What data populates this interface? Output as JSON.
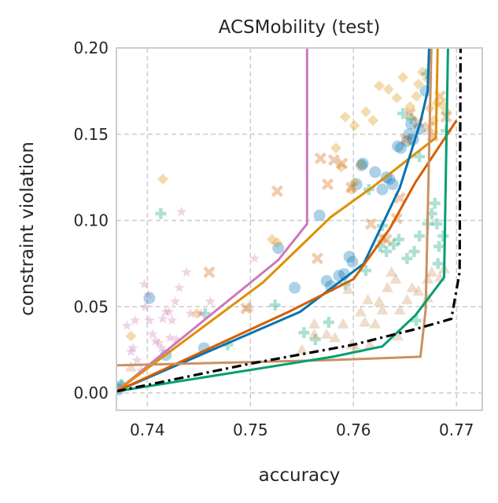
{
  "chart_data": {
    "type": "scatter",
    "title": "ACSMobility (test)",
    "xlabel": "accuracy",
    "ylabel": "constraint violation",
    "xlim": [
      0.737,
      0.7725
    ],
    "ylim": [
      -0.01,
      0.2
    ],
    "xticks": [
      "0.74",
      "0.75",
      "0.76",
      "0.77"
    ],
    "xtick_values": [
      0.74,
      0.75,
      0.76,
      0.77
    ],
    "yticks": [
      "0.00",
      "0.05",
      "0.10",
      "0.15",
      "0.20"
    ],
    "ytick_values": [
      0.0,
      0.05,
      0.1,
      0.15,
      0.2
    ],
    "grid": true,
    "legend": "none",
    "series": [
      {
        "color": "#0173b2",
        "marker": "circle",
        "points": [
          [
            0.7372,
            0.002
          ],
          [
            0.7402,
            0.055
          ],
          [
            0.7418,
            0.022
          ],
          [
            0.7455,
            0.026
          ],
          [
            0.7527,
            0.084
          ],
          [
            0.7543,
            0.061
          ],
          [
            0.7567,
            0.103
          ],
          [
            0.7574,
            0.065
          ],
          [
            0.7578,
            0.062
          ],
          [
            0.7586,
            0.068
          ],
          [
            0.7591,
            0.069
          ],
          [
            0.7596,
            0.079
          ],
          [
            0.7599,
            0.076
          ],
          [
            0.7603,
            0.121
          ],
          [
            0.7608,
            0.132
          ],
          [
            0.7609,
            0.133
          ],
          [
            0.7621,
            0.128
          ],
          [
            0.7628,
            0.118
          ],
          [
            0.7632,
            0.125
          ],
          [
            0.7635,
            0.124
          ],
          [
            0.7638,
            0.121
          ],
          [
            0.7643,
            0.143
          ],
          [
            0.7646,
            0.142
          ],
          [
            0.7652,
            0.146
          ],
          [
            0.7654,
            0.15
          ],
          [
            0.7656,
            0.156
          ],
          [
            0.7658,
            0.147
          ],
          [
            0.7664,
            0.153
          ],
          [
            0.767,
            0.175
          ],
          [
            0.7374,
            0.004
          ]
        ]
      },
      {
        "color": "#de8f05",
        "marker": "diamond",
        "points": [
          [
            0.7384,
            0.033
          ],
          [
            0.7415,
            0.124
          ],
          [
            0.7448,
            0.046
          ],
          [
            0.7521,
            0.089
          ],
          [
            0.7526,
            0.087
          ],
          [
            0.7583,
            0.142
          ],
          [
            0.7588,
            0.131
          ],
          [
            0.7598,
            0.118
          ],
          [
            0.7601,
            0.122
          ],
          [
            0.7607,
            0.132
          ],
          [
            0.7592,
            0.16
          ],
          [
            0.7601,
            0.155
          ],
          [
            0.7612,
            0.163
          ],
          [
            0.7619,
            0.158
          ],
          [
            0.7625,
            0.178
          ],
          [
            0.7634,
            0.176
          ],
          [
            0.7642,
            0.171
          ],
          [
            0.7648,
            0.183
          ],
          [
            0.7655,
            0.166
          ],
          [
            0.7661,
            0.172
          ],
          [
            0.7663,
            0.179
          ],
          [
            0.7667,
            0.186
          ],
          [
            0.7672,
            0.182
          ],
          [
            0.7674,
            0.165
          ],
          [
            0.7678,
            0.158
          ],
          [
            0.7681,
            0.168
          ],
          [
            0.7686,
            0.167
          ],
          [
            0.769,
            0.163
          ]
        ]
      },
      {
        "color": "#029e73",
        "marker": "plus",
        "points": [
          [
            0.7375,
            0.005
          ],
          [
            0.7413,
            0.104
          ],
          [
            0.7456,
            0.046
          ],
          [
            0.7478,
            0.028
          ],
          [
            0.7524,
            0.051
          ],
          [
            0.7552,
            0.035
          ],
          [
            0.7563,
            0.031
          ],
          [
            0.7576,
            0.041
          ],
          [
            0.7592,
            0.063
          ],
          [
            0.7612,
            0.071
          ],
          [
            0.7626,
            0.085
          ],
          [
            0.7632,
            0.082
          ],
          [
            0.7639,
            0.086
          ],
          [
            0.7644,
            0.089
          ],
          [
            0.7652,
            0.078
          ],
          [
            0.7659,
            0.082
          ],
          [
            0.7664,
            0.091
          ],
          [
            0.7672,
            0.098
          ],
          [
            0.7676,
            0.104
          ],
          [
            0.7679,
            0.11
          ],
          [
            0.7681,
            0.098
          ],
          [
            0.7683,
            0.085
          ],
          [
            0.7687,
            0.091
          ],
          [
            0.7615,
            0.118
          ],
          [
            0.7628,
            0.097
          ],
          [
            0.7648,
            0.162
          ],
          [
            0.7656,
            0.159
          ],
          [
            0.7664,
            0.137
          ],
          [
            0.7671,
            0.185
          ],
          [
            0.769,
            0.152
          ],
          [
            0.7661,
            0.042
          ],
          [
            0.7682,
            0.075
          ]
        ]
      },
      {
        "color": "#d55e00",
        "marker": "x",
        "points": [
          [
            0.746,
            0.07
          ],
          [
            0.7496,
            0.049
          ],
          [
            0.7565,
            0.078
          ],
          [
            0.7568,
            0.136
          ],
          [
            0.7575,
            0.121
          ],
          [
            0.7581,
            0.135
          ],
          [
            0.7589,
            0.133
          ],
          [
            0.7598,
            0.119
          ],
          [
            0.7617,
            0.098
          ],
          [
            0.7628,
            0.09
          ],
          [
            0.7632,
            0.089
          ],
          [
            0.7642,
            0.101
          ],
          [
            0.7645,
            0.113
          ],
          [
            0.7651,
            0.147
          ],
          [
            0.7655,
            0.162
          ],
          [
            0.7663,
            0.157
          ],
          [
            0.7673,
            0.154
          ],
          [
            0.7677,
            0.149
          ],
          [
            0.7684,
            0.172
          ],
          [
            0.769,
            0.16
          ],
          [
            0.7526,
            0.117
          ]
        ]
      },
      {
        "color": "#cc78bc",
        "marker": "star",
        "points": [
          [
            0.7372,
            0.003
          ],
          [
            0.738,
            0.039
          ],
          [
            0.7384,
            0.024
          ],
          [
            0.7386,
            0.026
          ],
          [
            0.7388,
            0.042
          ],
          [
            0.739,
            0.019
          ],
          [
            0.7394,
            0.013
          ],
          [
            0.7398,
            0.05
          ],
          [
            0.7401,
            0.057
          ],
          [
            0.7402,
            0.042
          ],
          [
            0.7405,
            0.034
          ],
          [
            0.7408,
            0.03
          ],
          [
            0.7411,
            0.029
          ],
          [
            0.7415,
            0.043
          ],
          [
            0.7418,
            0.047
          ],
          [
            0.7421,
            0.047
          ],
          [
            0.7422,
            0.032
          ],
          [
            0.7424,
            0.042
          ],
          [
            0.7427,
            0.053
          ],
          [
            0.7431,
            0.061
          ],
          [
            0.7433,
            0.105
          ],
          [
            0.7438,
            0.07
          ],
          [
            0.7442,
            0.046
          ],
          [
            0.7452,
            0.046
          ],
          [
            0.7461,
            0.053
          ],
          [
            0.7504,
            0.078
          ],
          [
            0.7397,
            0.063
          ],
          [
            0.7414,
            0.026
          ],
          [
            0.7428,
            0.031
          ]
        ]
      },
      {
        "color": "#ca9161",
        "marker": "triangle",
        "points": [
          [
            0.7384,
            0.015
          ],
          [
            0.7498,
            0.05
          ],
          [
            0.755,
            0.025
          ],
          [
            0.7562,
            0.034
          ],
          [
            0.7574,
            0.034
          ],
          [
            0.7582,
            0.032
          ],
          [
            0.759,
            0.04
          ],
          [
            0.7595,
            0.06
          ],
          [
            0.7598,
            0.028
          ],
          [
            0.7603,
            0.026
          ],
          [
            0.7607,
            0.047
          ],
          [
            0.7611,
            0.041
          ],
          [
            0.7614,
            0.054
          ],
          [
            0.7616,
            0.028
          ],
          [
            0.7621,
            0.04
          ],
          [
            0.7625,
            0.053
          ],
          [
            0.7628,
            0.048
          ],
          [
            0.7633,
            0.061
          ],
          [
            0.7637,
            0.07
          ],
          [
            0.7641,
            0.066
          ],
          [
            0.7645,
            0.048
          ],
          [
            0.7652,
            0.054
          ],
          [
            0.7657,
            0.061
          ],
          [
            0.7663,
            0.059
          ],
          [
            0.7672,
            0.066
          ],
          [
            0.7676,
            0.07
          ],
          [
            0.7684,
            0.067
          ],
          [
            0.7688,
            0.072
          ],
          [
            0.7672,
            0.055
          ],
          [
            0.7562,
            0.04
          ],
          [
            0.7643,
            0.033
          ]
        ]
      }
    ],
    "lines": [
      {
        "color": "#cc78bc",
        "dash": "solid",
        "points": [
          [
            0.737,
            0.001
          ],
          [
            0.7527,
            0.077
          ],
          [
            0.7555,
            0.098
          ],
          [
            0.7555,
            0.21
          ]
        ]
      },
      {
        "color": "#de8f05",
        "dash": "solid",
        "points": [
          [
            0.737,
            0.001
          ],
          [
            0.7512,
            0.064
          ],
          [
            0.7578,
            0.102
          ],
          [
            0.762,
            0.12
          ],
          [
            0.768,
            0.148
          ],
          [
            0.7682,
            0.21
          ]
        ]
      },
      {
        "color": "#0173b2",
        "dash": "solid",
        "points": [
          [
            0.737,
            0.001
          ],
          [
            0.7548,
            0.047
          ],
          [
            0.761,
            0.075
          ],
          [
            0.7645,
            0.119
          ],
          [
            0.7665,
            0.157
          ],
          [
            0.7672,
            0.175
          ],
          [
            0.7674,
            0.21
          ]
        ]
      },
      {
        "color": "#d55e00",
        "dash": "solid",
        "points": [
          [
            0.737,
            0.001
          ],
          [
            0.7537,
            0.047
          ],
          [
            0.76,
            0.066
          ],
          [
            0.7635,
            0.095
          ],
          [
            0.766,
            0.122
          ],
          [
            0.77,
            0.158
          ]
        ]
      },
      {
        "color": "#ca9161",
        "dash": "solid",
        "points": [
          [
            0.737,
            0.016
          ],
          [
            0.7575,
            0.019
          ],
          [
            0.7665,
            0.021
          ],
          [
            0.767,
            0.048
          ],
          [
            0.7676,
            0.21
          ]
        ]
      },
      {
        "color": "#029e73",
        "dash": "solid",
        "points": [
          [
            0.737,
            0.001
          ],
          [
            0.758,
            0.021
          ],
          [
            0.7628,
            0.027
          ],
          [
            0.766,
            0.045
          ],
          [
            0.7688,
            0.067
          ],
          [
            0.7692,
            0.21
          ]
        ]
      },
      {
        "color": "#000000",
        "dash": "dashdot",
        "points": [
          [
            0.737,
            0.001
          ],
          [
            0.75,
            0.017
          ],
          [
            0.76,
            0.028
          ],
          [
            0.766,
            0.037
          ],
          [
            0.7695,
            0.043
          ],
          [
            0.7703,
            0.07
          ],
          [
            0.7704,
            0.21
          ]
        ]
      }
    ]
  }
}
